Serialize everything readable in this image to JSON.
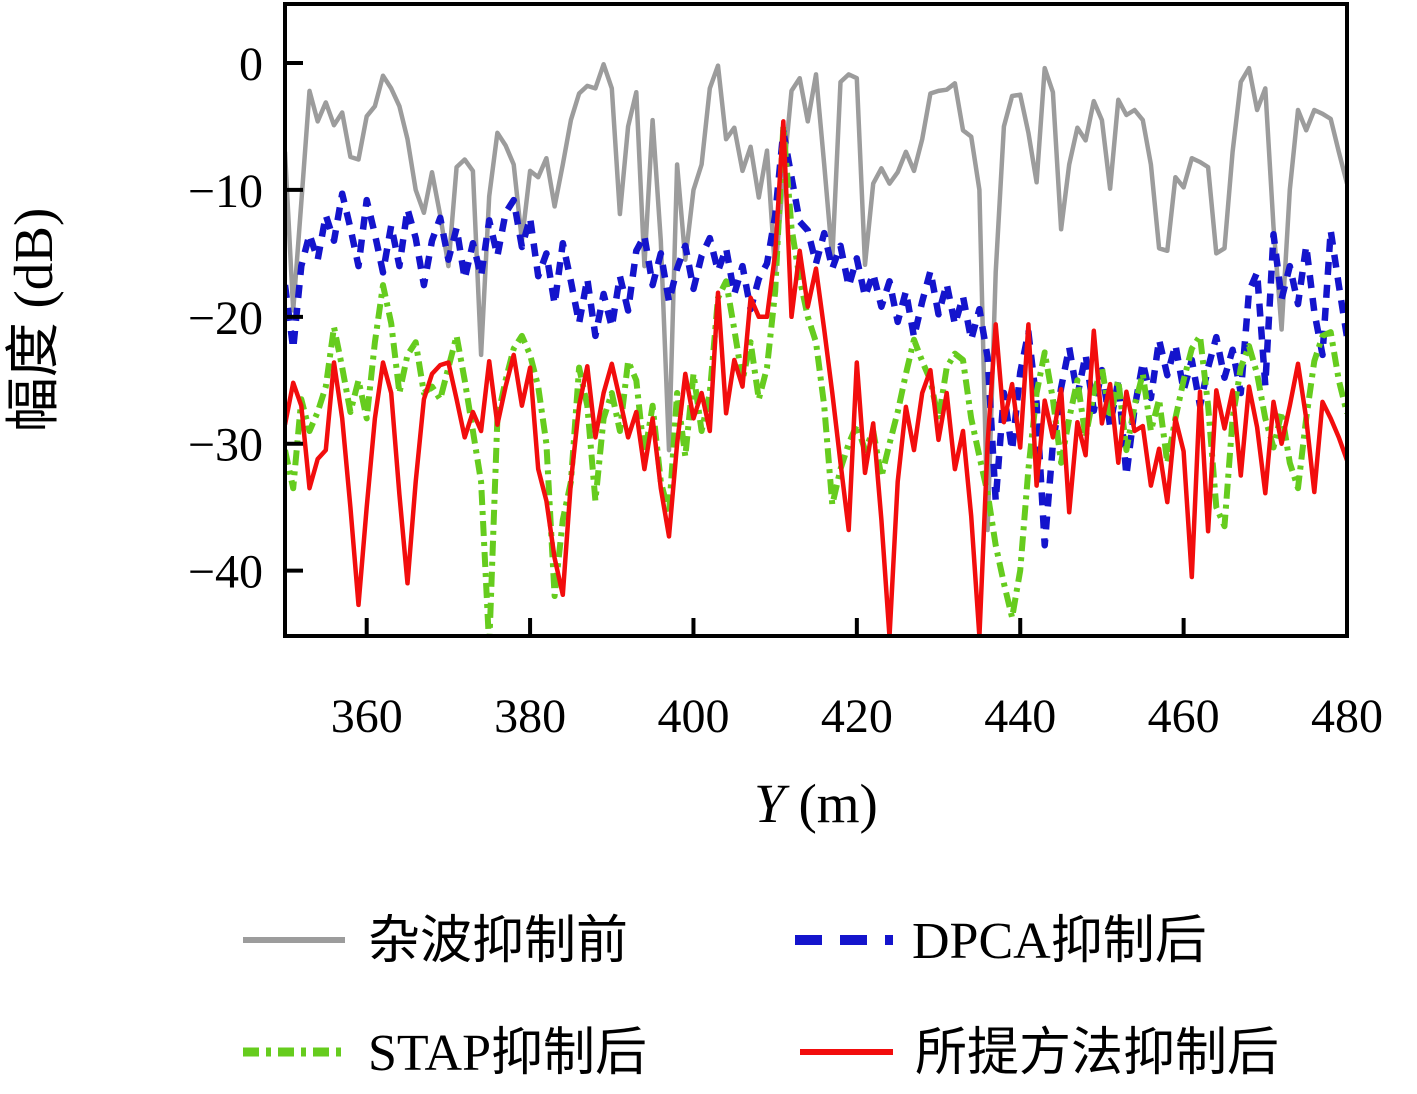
{
  "chart_data": {
    "type": "line",
    "title": "",
    "xlabel": "Y (m)",
    "xlabel_italic_part": "Y",
    "xlabel_rest_part": " (m)",
    "ylabel": "幅度 (dB)",
    "xlim": [
      350,
      480
    ],
    "ylim": [
      -45.15,
      4.65
    ],
    "grid": false,
    "legend_position": "below-two-column",
    "xticks": [
      360,
      380,
      400,
      420,
      440,
      460,
      480
    ],
    "xtick_labels": [
      "360",
      "380",
      "400",
      "420",
      "440",
      "460",
      "480"
    ],
    "yticks": [
      0,
      -10,
      -20,
      -30,
      -40
    ],
    "ytick_labels": [
      "0",
      "−10",
      "−20",
      "−30",
      "−40"
    ],
    "target_peak": {
      "x": 411.5,
      "y": -4.5,
      "note": "all suppressed curves converge at target peak"
    },
    "x": [
      350,
      351,
      352,
      353,
      354,
      355,
      356,
      357,
      358,
      359,
      360,
      361,
      362,
      363,
      364,
      365,
      366,
      367,
      368,
      369,
      370,
      371,
      372,
      373,
      374,
      375,
      376,
      377,
      378,
      379,
      380,
      381,
      382,
      383,
      384,
      385,
      386,
      387,
      388,
      389,
      390,
      391,
      392,
      393,
      394,
      395,
      396,
      397,
      398,
      399,
      400,
      401,
      402,
      403,
      404,
      405,
      406,
      407,
      408,
      409,
      410,
      411,
      412,
      413,
      414,
      415,
      416,
      417,
      418,
      419,
      420,
      421,
      422,
      423,
      424,
      425,
      426,
      427,
      428,
      429,
      430,
      431,
      432,
      433,
      434,
      435,
      436,
      437,
      438,
      439,
      440,
      441,
      442,
      443,
      444,
      445,
      446,
      447,
      448,
      449,
      450,
      451,
      452,
      453,
      454,
      455,
      456,
      457,
      458,
      459,
      460,
      461,
      462,
      463,
      464,
      465,
      466,
      467,
      468,
      469,
      470,
      471,
      472,
      473,
      474,
      475,
      476,
      477,
      478,
      479,
      480
    ],
    "series": [
      {
        "name": "杂波抑制前",
        "color": "#9c9c9c",
        "style": "solid",
        "dash": "",
        "width": 4.5,
        "values": [
          -7,
          -19.5,
          -11,
          -2.2,
          -4.6,
          -3.1,
          -4.9,
          -3.9,
          -7.4,
          -7.6,
          -4.2,
          -3.4,
          -1,
          -2,
          -3.4,
          -6,
          -10,
          -11.8,
          -8.6,
          -12,
          -16,
          -8.2,
          -7.6,
          -8.5,
          -23,
          -10.5,
          -5.5,
          -6.5,
          -8,
          -14,
          -8.5,
          -9,
          -7.5,
          -11.3,
          -8,
          -4.5,
          -2.4,
          -1.8,
          -2,
          -0.1,
          -2,
          -11.9,
          -5,
          -2.3,
          -16,
          -4.5,
          -14,
          -30.5,
          -8,
          -15.5,
          -10,
          -8,
          -2,
          -0.2,
          -6,
          -5.1,
          -8.5,
          -6.6,
          -10.6,
          -6.9,
          -16.5,
          -9,
          -2.2,
          -1.2,
          -4.6,
          -0.9,
          -8,
          -15.4,
          -1.5,
          -0.9,
          -1.2,
          -15.9,
          -9.5,
          -8.3,
          -9.5,
          -8.6,
          -7,
          -8.5,
          -6,
          -2.4,
          -2.2,
          -2.1,
          -1.6,
          -5.3,
          -5.8,
          -10,
          -36.8,
          -16.5,
          -5,
          -2.6,
          -2.5,
          -5.5,
          -9.4,
          -0.4,
          -2.3,
          -13.1,
          -8,
          -5.1,
          -6.1,
          -3,
          -4.5,
          -9.9,
          -2.9,
          -4.1,
          -3.7,
          -4.5,
          -8,
          -14.6,
          -14.8,
          -9,
          -9.8,
          -7.5,
          -7.8,
          -8.2,
          -15,
          -14.6,
          -7,
          -1.5,
          -0.4,
          -3.7,
          -2,
          -12.9,
          -21,
          -10,
          -3.7,
          -5.3,
          -3.7,
          -4,
          -4.4,
          -7,
          -9.5
        ]
      },
      {
        "name": "DPCA抑制后",
        "color": "#1414cc",
        "style": "dashed",
        "dash": "13 10",
        "width": 6.5,
        "values": [
          -17.5,
          -22.5,
          -16,
          -13.5,
          -15.5,
          -12,
          -14,
          -10.3,
          -13,
          -16,
          -10.8,
          -13.5,
          -16.5,
          -12.8,
          -16,
          -11.5,
          -13.8,
          -17.5,
          -14,
          -12.2,
          -15.5,
          -13,
          -17,
          -14.2,
          -16.8,
          -12.4,
          -15.2,
          -11.8,
          -10.8,
          -14.5,
          -12.2,
          -16.8,
          -15,
          -19,
          -14.2,
          -17.2,
          -20.5,
          -17,
          -21.5,
          -18.2,
          -20.8,
          -16.8,
          -19.5,
          -14.8,
          -13.6,
          -17.5,
          -15,
          -18.8,
          -16.2,
          -14.4,
          -17.8,
          -15.2,
          -13.8,
          -16.4,
          -14.6,
          -18.2,
          -16,
          -19.4,
          -17,
          -15.8,
          -12,
          -5.4,
          -9,
          -12.5,
          -13.2,
          -15.8,
          -13.4,
          -16.2,
          -14.4,
          -17.6,
          -15.4,
          -18.4,
          -16.6,
          -19.2,
          -17.2,
          -20.4,
          -18,
          -21.6,
          -18.8,
          -16.4,
          -19.8,
          -17.4,
          -20.6,
          -18.4,
          -21.8,
          -19.4,
          -23.2,
          -34.5,
          -26,
          -30.5,
          -24.4,
          -21.2,
          -26.8,
          -38,
          -30,
          -25.6,
          -22.4,
          -26.2,
          -23,
          -27.4,
          -24.2,
          -28.6,
          -25,
          -32.5,
          -27.2,
          -23.6,
          -26.4,
          -21.8,
          -24.6,
          -22.2,
          -25.8,
          -23.4,
          -27,
          -24,
          -21.6,
          -24.8,
          -22.6,
          -26,
          -18,
          -16.5,
          -25.4,
          -13.5,
          -18.6,
          -16,
          -19,
          -14.4,
          -19.6,
          -23,
          -13.2,
          -17.5,
          -21.6
        ]
      },
      {
        "name": "STAP抑制后",
        "color": "#66cc1e",
        "style": "dashdot",
        "dash": "15 6 4 6",
        "width": 6,
        "values": [
          -30.5,
          -33.5,
          -26.5,
          -29,
          -27.5,
          -25.5,
          -20.8,
          -24,
          -27.5,
          -25,
          -28,
          -22,
          -17.5,
          -20.5,
          -26,
          -23,
          -22,
          -26,
          -25.5,
          -26.5,
          -24,
          -21.5,
          -25,
          -29,
          -33,
          -46,
          -28,
          -25,
          -22.5,
          -21.5,
          -23,
          -25.5,
          -30,
          -42,
          -36,
          -33,
          -24,
          -27,
          -34.5,
          -28,
          -26,
          -29,
          -23.5,
          -25,
          -31,
          -27,
          -33,
          -35.5,
          -26,
          -31,
          -24.5,
          -29,
          -26,
          -18.5,
          -17.2,
          -21,
          -25,
          -22,
          -26.5,
          -24,
          -18,
          -5,
          -13,
          -17,
          -20,
          -22,
          -27,
          -34.8,
          -32,
          -30,
          -28.5,
          -30.5,
          -29,
          -32.6,
          -30,
          -27.5,
          -24.5,
          -21.8,
          -23.5,
          -25,
          -28.1,
          -24,
          -22.9,
          -23.4,
          -28,
          -31,
          -33.9,
          -38,
          -41,
          -43.7,
          -40,
          -32,
          -26,
          -22.8,
          -26.5,
          -31.5,
          -28,
          -25,
          -29.5,
          -26,
          -24,
          -28,
          -25,
          -30.5,
          -27,
          -24.5,
          -29,
          -26.5,
          -31.5,
          -28,
          -25,
          -22.5,
          -21.5,
          -27,
          -35,
          -36.5,
          -28,
          -24,
          -22.3,
          -24.5,
          -28,
          -30.3,
          -27.5,
          -31.5,
          -33.5,
          -28,
          -23.5,
          -21.5,
          -21.2,
          -25,
          -27.6
        ]
      },
      {
        "name": "所提方法抑制后",
        "color": "#f20d0d",
        "style": "solid",
        "dash": "",
        "width": 4.5,
        "values": [
          -28.5,
          -25.2,
          -27,
          -33.5,
          -31.2,
          -30.5,
          -23.6,
          -28,
          -35,
          -42.7,
          -35,
          -28,
          -23.6,
          -26,
          -34,
          -41,
          -33,
          -26.5,
          -24.5,
          -23.8,
          -23.6,
          -26.5,
          -29.5,
          -27.5,
          -29,
          -23.5,
          -28.5,
          -25.5,
          -23,
          -27,
          -24,
          -32,
          -34.5,
          -39,
          -41.9,
          -33,
          -27,
          -23.9,
          -29.5,
          -26,
          -23.7,
          -26.5,
          -29.5,
          -27.5,
          -32,
          -28,
          -33.5,
          -37.3,
          -30,
          -24.5,
          -28,
          -26,
          -29,
          -18.1,
          -27.6,
          -23.4,
          -25.5,
          -18.5,
          -20,
          -20,
          -15,
          -4.6,
          -20,
          -14.8,
          -19.2,
          -16.2,
          -21,
          -26,
          -31.5,
          -36.8,
          -23.6,
          -32.3,
          -28.4,
          -36,
          -45.2,
          -33,
          -27.1,
          -30.5,
          -26,
          -24.2,
          -29.7,
          -26,
          -32,
          -29,
          -35.7,
          -45.2,
          -30,
          -20.6,
          -28.3,
          -25.3,
          -30.3,
          -20.6,
          -33.3,
          -26.6,
          -29.5,
          -25.7,
          -35.4,
          -28.3,
          -30.9,
          -21.1,
          -28.4,
          -25.3,
          -31.5,
          -25.9,
          -29,
          -28.6,
          -33.3,
          -30.4,
          -34.6,
          -28,
          -30.6,
          -40.5,
          -25.9,
          -36.9,
          -25.8,
          -28.8,
          -25.8,
          -32.5,
          -25.5,
          -28.7,
          -33.9,
          -26.7,
          -30,
          -27,
          -23.7,
          -28,
          -33.8,
          -26.7,
          -28,
          -29.5,
          -31.3
        ]
      }
    ]
  },
  "layout_colors": {
    "axis": "#000000",
    "background": "#ffffff",
    "text": "#000000"
  }
}
